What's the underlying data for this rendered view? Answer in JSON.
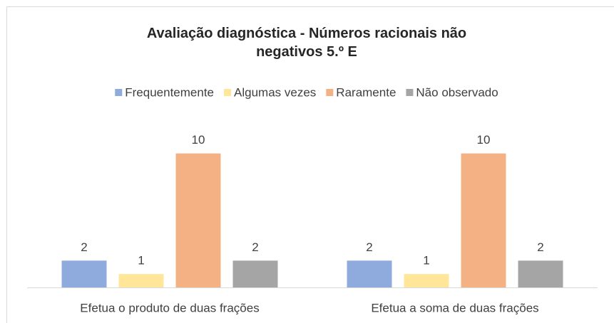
{
  "chart_data": {
    "type": "bar",
    "title": "Avaliação diagnóstica - Números racionais não negativos 5.º E",
    "categories": [
      "Efetua o produto de duas frações",
      "Efetua a soma de duas frações"
    ],
    "series": [
      {
        "name": "Frequentemente",
        "color": "#8faadc",
        "values": [
          2,
          2
        ]
      },
      {
        "name": "Algumas vezes",
        "color": "#ffe699",
        "values": [
          1,
          1
        ]
      },
      {
        "name": "Raramente",
        "color": "#f4b183",
        "values": [
          10,
          10
        ]
      },
      {
        "name": "Não observado",
        "color": "#a5a5a5",
        "values": [
          2,
          2
        ]
      }
    ],
    "legend": "top"
  }
}
